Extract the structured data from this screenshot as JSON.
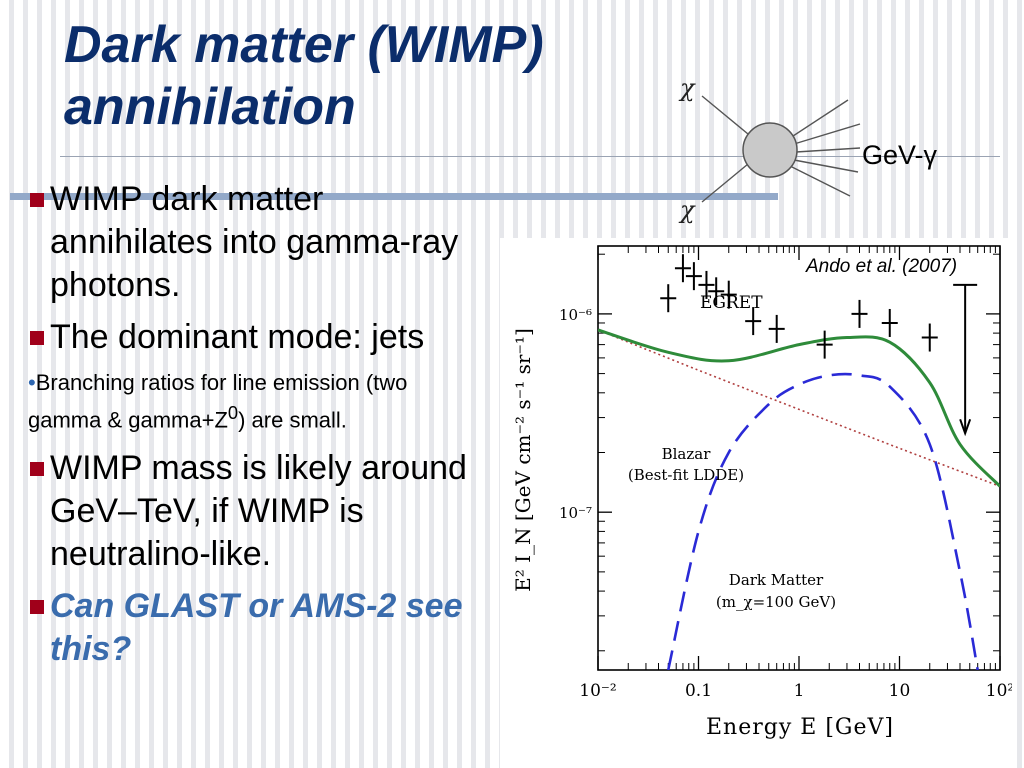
{
  "slide": {
    "title_line1": "Dark matter (WIMP)",
    "title_line2": "annihilation"
  },
  "diagram": {
    "chi_top": "χ",
    "chi_bottom": "χ",
    "gamma_label": "GeV-γ"
  },
  "bullets": [
    {
      "text": "WIMP dark matter annihilates into gamma-ray photons."
    },
    {
      "text": "The dominant mode: jets"
    },
    {
      "text_pre": "Branching ratios for line emission (two gamma & gamma+Z",
      "sup": "0",
      "text_post": ") are small."
    },
    {
      "text": "WIMP mass is likely around GeV–TeV, if WIMP is neutralino-like."
    },
    {
      "text": "Can GLAST or AMS-2 see this?"
    }
  ],
  "colors": {
    "title": "#0b2d6b",
    "bullet_marker": "#a0001a",
    "emphasis": "#3a6cad",
    "dark_matter_curve": "#2a2ad6",
    "total_curve": "#2e8b3a",
    "blazar_curve": "#b04040"
  },
  "chart_data": {
    "type": "line",
    "citation": "Ando et al. (2007)",
    "xlabel": "Energy E [GeV]",
    "ylabel": "E² I_N [GeV cm⁻² s⁻¹ sr⁻¹]",
    "xscale": "log",
    "yscale": "log",
    "xlim": [
      0.01,
      100
    ],
    "ylim": [
      1.6e-08,
      2.2e-06
    ],
    "x_tick_labels": [
      "10⁻²",
      "0.1",
      "1",
      "10",
      "10²"
    ],
    "y_tick_labels": [
      "10⁻⁷",
      "10⁻⁶"
    ],
    "annotations": [
      "EGRET",
      "Blazar",
      "(Best-fit LDDE)",
      "Dark Matter",
      "(m_χ=100 GeV)"
    ],
    "egret_points": [
      {
        "x": 0.05,
        "y": 1.2e-06
      },
      {
        "x": 0.07,
        "y": 1.7e-06
      },
      {
        "x": 0.09,
        "y": 1.55e-06
      },
      {
        "x": 0.12,
        "y": 1.4e-06
      },
      {
        "x": 0.15,
        "y": 1.3e-06
      },
      {
        "x": 0.2,
        "y": 1.25e-06
      },
      {
        "x": 0.35,
        "y": 9.2e-07
      },
      {
        "x": 0.6,
        "y": 8.4e-07
      },
      {
        "x": 1.8,
        "y": 7e-07
      },
      {
        "x": 4.0,
        "y": 1e-06
      },
      {
        "x": 8.0,
        "y": 9e-07
      },
      {
        "x": 20.0,
        "y": 7.6e-07
      }
    ],
    "upper_limit": {
      "x": 45,
      "y": 1.4e-06,
      "to": 2.5e-07
    },
    "series": [
      {
        "key": "dark_matter",
        "x": [
          0.05,
          0.1,
          0.2,
          0.5,
          1,
          2,
          4,
          8,
          20,
          40,
          60
        ],
        "y": [
          1.6e-08,
          8e-08,
          2e-07,
          3.5e-07,
          4.4e-07,
          4.9e-07,
          4.9e-07,
          4.3e-07,
          2.2e-07,
          5e-08,
          1.6e-08
        ]
      },
      {
        "key": "blazar",
        "x": [
          0.01,
          0.1,
          1,
          10,
          100
        ],
        "y": [
          8.3e-07,
          5.2e-07,
          3.3e-07,
          2.1e-07,
          1.35e-07
        ]
      },
      {
        "key": "total",
        "x": [
          0.01,
          0.05,
          0.2,
          1,
          3,
          8,
          20,
          40,
          100
        ],
        "y": [
          8.3e-07,
          6.4e-07,
          5.8e-07,
          7e-07,
          7.6e-07,
          7.2e-07,
          4.5e-07,
          2.2e-07,
          1.35e-07
        ]
      }
    ]
  }
}
